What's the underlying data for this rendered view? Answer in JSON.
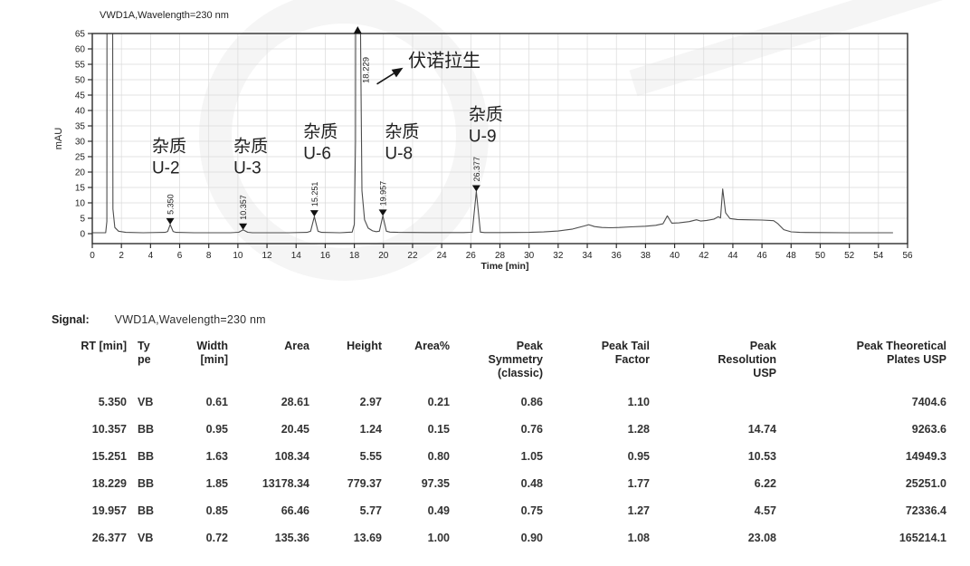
{
  "page": {
    "background": "#ffffff"
  },
  "chart_data": {
    "type": "line",
    "title": "VWD1A,Wavelength=230 nm",
    "xlabel": "Time [min]",
    "ylabel": "mAU",
    "xlim": [
      0,
      56
    ],
    "ylim": [
      0,
      65
    ],
    "x_tick_step": 2,
    "y_tick_step": 5,
    "grid": true,
    "trace_color": "#4d4d4d",
    "axis_color": "#2e2e2e",
    "grid_color": "#dadada",
    "marker_color": "#111111",
    "trace": [
      [
        0,
        0.3
      ],
      [
        0.92,
        0.3
      ],
      [
        1.0,
        4
      ],
      [
        1.05,
        400
      ],
      [
        1.3,
        400
      ],
      [
        1.42,
        8
      ],
      [
        1.55,
        2
      ],
      [
        1.8,
        0.8
      ],
      [
        2.3,
        0.4
      ],
      [
        3.5,
        0.3
      ],
      [
        5.0,
        0.4
      ],
      [
        5.18,
        0.7
      ],
      [
        5.35,
        2.97
      ],
      [
        5.55,
        0.7
      ],
      [
        5.75,
        0.4
      ],
      [
        7,
        0.3
      ],
      [
        9.5,
        0.3
      ],
      [
        10.05,
        0.45
      ],
      [
        10.36,
        1.24
      ],
      [
        10.68,
        0.45
      ],
      [
        11,
        0.3
      ],
      [
        13.5,
        0.3
      ],
      [
        14.75,
        0.4
      ],
      [
        15.0,
        0.8
      ],
      [
        15.25,
        5.55
      ],
      [
        15.5,
        0.8
      ],
      [
        15.75,
        0.4
      ],
      [
        17,
        0.3
      ],
      [
        17.85,
        0.5
      ],
      [
        18.0,
        3
      ],
      [
        18.08,
        30
      ],
      [
        18.16,
        400
      ],
      [
        18.3,
        400
      ],
      [
        18.4,
        80
      ],
      [
        18.52,
        14
      ],
      [
        18.7,
        4.5
      ],
      [
        18.95,
        1.8
      ],
      [
        19.25,
        0.9
      ],
      [
        19.5,
        0.65
      ],
      [
        19.72,
        0.8
      ],
      [
        19.96,
        5.77
      ],
      [
        20.2,
        0.8
      ],
      [
        20.45,
        0.5
      ],
      [
        21,
        0.4
      ],
      [
        23,
        0.35
      ],
      [
        25.5,
        0.35
      ],
      [
        26.1,
        0.45
      ],
      [
        26.38,
        13.69
      ],
      [
        26.66,
        0.5
      ],
      [
        26.95,
        0.35
      ],
      [
        28,
        0.35
      ],
      [
        30,
        0.4
      ],
      [
        31,
        0.55
      ],
      [
        32,
        0.85
      ],
      [
        33,
        1.5
      ],
      [
        33.8,
        2.5
      ],
      [
        34.1,
        2.9
      ],
      [
        34.5,
        2.3
      ],
      [
        35,
        2.0
      ],
      [
        35.6,
        1.9
      ],
      [
        36.2,
        2.0
      ],
      [
        37,
        2.2
      ],
      [
        38,
        2.4
      ],
      [
        38.7,
        2.7
      ],
      [
        39.2,
        3.2
      ],
      [
        39.5,
        5.8
      ],
      [
        39.8,
        3.4
      ],
      [
        40.3,
        3.5
      ],
      [
        41,
        3.9
      ],
      [
        41.5,
        4.5
      ],
      [
        41.8,
        4.1
      ],
      [
        42.2,
        4.3
      ],
      [
        42.7,
        4.7
      ],
      [
        43.0,
        5.5
      ],
      [
        43.15,
        5.1
      ],
      [
        43.3,
        14.5
      ],
      [
        43.5,
        6.8
      ],
      [
        43.8,
        4.9
      ],
      [
        44.3,
        4.6
      ],
      [
        45,
        4.5
      ],
      [
        46,
        4.4
      ],
      [
        46.8,
        4.2
      ],
      [
        47.1,
        3.2
      ],
      [
        47.5,
        1.3
      ],
      [
        48,
        0.6
      ],
      [
        48.6,
        0.4
      ],
      [
        50,
        0.35
      ],
      [
        52,
        0.3
      ],
      [
        54,
        0.3
      ],
      [
        55,
        0.3
      ]
    ],
    "peaks": [
      {
        "rt_label": "5.350",
        "t": 5.35,
        "mau": 2.97,
        "clipped": false
      },
      {
        "rt_label": "10.357",
        "t": 10.357,
        "mau": 1.24,
        "clipped": false
      },
      {
        "rt_label": "15.251",
        "t": 15.251,
        "mau": 5.55,
        "clipped": false
      },
      {
        "rt_label": "18.229",
        "t": 18.229,
        "mau": 65,
        "clipped": true
      },
      {
        "rt_label": "19.957",
        "t": 19.957,
        "mau": 5.77,
        "clipped": false
      },
      {
        "rt_label": "26.377",
        "t": 26.377,
        "mau": 13.69,
        "clipped": false
      }
    ],
    "annotations": [
      {
        "lines": [
          "杂质",
          "U-2"
        ],
        "t": 4.1,
        "mau": 26.6
      },
      {
        "lines": [
          "杂质",
          "U-3"
        ],
        "t": 9.7,
        "mau": 26.6
      },
      {
        "lines": [
          "杂质",
          "U-6"
        ],
        "t": 14.5,
        "mau": 31.3
      },
      {
        "lines": [
          "杂质",
          "U-8"
        ],
        "t": 20.1,
        "mau": 31.3
      },
      {
        "lines": [
          "杂质",
          "U-9"
        ],
        "t": 25.85,
        "mau": 36.9
      }
    ],
    "api_annotation": {
      "text": "伏诺拉生",
      "t": 21.7,
      "mau": 54.3,
      "arrow": {
        "t1": 19.55,
        "mau1": 48.6,
        "t2": 21.35,
        "mau2": 53.9
      }
    }
  },
  "table": {
    "signal_label": "Signal:",
    "signal_value": "VWD1A,Wavelength=230 nm",
    "columns": [
      {
        "key": "rt",
        "label": "RT [min]"
      },
      {
        "key": "type",
        "label": "Ty\npe"
      },
      {
        "key": "width",
        "label": "Width\n[min]"
      },
      {
        "key": "area",
        "label": "Area"
      },
      {
        "key": "height",
        "label": "Height"
      },
      {
        "key": "area-pct",
        "label": "Area%"
      },
      {
        "key": "symmetry",
        "label": "Peak\nSymmetry\n(classic)"
      },
      {
        "key": "tail-factor",
        "label": "Peak Tail\nFactor"
      },
      {
        "key": "resolution",
        "label": "Peak\nResolution\nUSP"
      },
      {
        "key": "plates",
        "label": "Peak Theoretical\nPlates USP"
      }
    ],
    "rows": [
      [
        "5.350",
        "VB",
        "0.61",
        "28.61",
        "2.97",
        "0.21",
        "0.86",
        "1.10",
        "",
        "7404.6"
      ],
      [
        "10.357",
        "BB",
        "0.95",
        "20.45",
        "1.24",
        "0.15",
        "0.76",
        "1.28",
        "14.74",
        "9263.6"
      ],
      [
        "15.251",
        "BB",
        "1.63",
        "108.34",
        "5.55",
        "0.80",
        "1.05",
        "0.95",
        "10.53",
        "14949.3"
      ],
      [
        "18.229",
        "BB",
        "1.85",
        "13178.34",
        "779.37",
        "97.35",
        "0.48",
        "1.77",
        "6.22",
        "25251.0"
      ],
      [
        "19.957",
        "BB",
        "0.85",
        "66.46",
        "5.77",
        "0.49",
        "0.75",
        "1.27",
        "4.57",
        "72336.4"
      ],
      [
        "26.377",
        "VB",
        "0.72",
        "135.36",
        "13.69",
        "1.00",
        "0.90",
        "1.08",
        "23.08",
        "165214.1"
      ]
    ]
  }
}
